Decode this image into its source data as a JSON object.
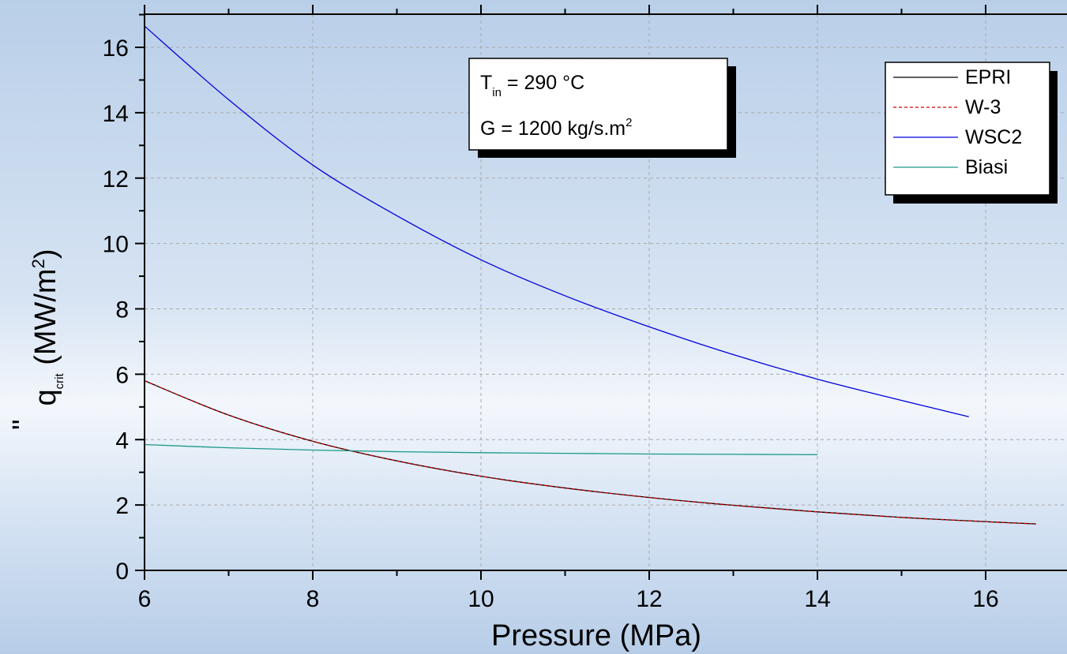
{
  "chart_data": {
    "type": "line",
    "xlabel": "Pressure (MPa)",
    "ylabel": {
      "main": "q",
      "prime": "\"",
      "sub": "crit",
      "units_pre": " (MW/m",
      "units_sup": "2",
      "units_post": ")"
    },
    "xlim": [
      6,
      17
    ],
    "ylim": [
      0,
      17
    ],
    "xticks": [
      6,
      8,
      10,
      12,
      14,
      16
    ],
    "yticks": [
      0,
      2,
      4,
      6,
      8,
      10,
      12,
      14,
      16
    ],
    "grid": true,
    "legend_position": "top-right",
    "annotation": {
      "line1": {
        "main": "T",
        "sub": "in",
        "rest": " = 290 °C"
      },
      "line2": {
        "main": "G = 1200 kg/s.m",
        "sup": "2"
      }
    },
    "series": [
      {
        "name": "EPRI",
        "color": "#000000",
        "dash": "none",
        "x": [
          6,
          7,
          8,
          9,
          10,
          11,
          12,
          13,
          14,
          15,
          16,
          16.6
        ],
        "y": [
          5.8,
          4.75,
          3.95,
          3.35,
          2.88,
          2.52,
          2.23,
          1.99,
          1.79,
          1.62,
          1.49,
          1.42
        ]
      },
      {
        "name": "W-3",
        "color": "#d00000",
        "dash": "4,3",
        "x": [
          6,
          7,
          8,
          9,
          10,
          11,
          12,
          13,
          14,
          15,
          16,
          16.6
        ],
        "y": [
          5.8,
          4.75,
          3.95,
          3.35,
          2.88,
          2.52,
          2.23,
          1.99,
          1.79,
          1.62,
          1.49,
          1.42
        ]
      },
      {
        "name": "WSC2",
        "color": "#0000dd",
        "dash": "none",
        "x": [
          6,
          7,
          8,
          9,
          10,
          11,
          12,
          13,
          14,
          15,
          15.8
        ],
        "y": [
          16.65,
          14.4,
          12.4,
          10.85,
          9.5,
          8.4,
          7.45,
          6.6,
          5.85,
          5.2,
          4.7
        ]
      },
      {
        "name": "Biasi",
        "color": "#1a9a8a",
        "dash": "none",
        "x": [
          6,
          7,
          8,
          9,
          10,
          11,
          12,
          13,
          14
        ],
        "y": [
          3.85,
          3.75,
          3.68,
          3.63,
          3.6,
          3.58,
          3.56,
          3.55,
          3.54
        ]
      }
    ]
  }
}
